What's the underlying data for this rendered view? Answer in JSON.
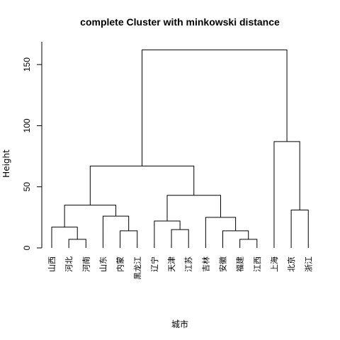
{
  "chart_data": {
    "type": "dendrogram",
    "title": "complete Cluster with minkowski distance",
    "xlabel": "城市",
    "ylabel": "Height",
    "ylim": [
      0,
      168
    ],
    "yticks": [
      0,
      50,
      100,
      150
    ],
    "leaves": [
      "山西",
      "河北",
      "河南",
      "山东",
      "内蒙",
      "黑龙江",
      "辽宁",
      "天津",
      "江苏",
      "吉林",
      "安徽",
      "福建",
      "江西",
      "上海",
      "北京",
      "浙江"
    ],
    "merges": [
      {
        "a": "L1",
        "b": "L2",
        "height": 7
      },
      {
        "a": "L0",
        "b": "N0",
        "height": 17
      },
      {
        "a": "L4",
        "b": "L5",
        "height": 14
      },
      {
        "a": "L3",
        "b": "N2",
        "height": 26
      },
      {
        "a": "N1",
        "b": "N3",
        "height": 35
      },
      {
        "a": "L7",
        "b": "L8",
        "height": 15
      },
      {
        "a": "L6",
        "b": "N5",
        "height": 22
      },
      {
        "a": "L11",
        "b": "L12",
        "height": 7
      },
      {
        "a": "L10",
        "b": "N7",
        "height": 14
      },
      {
        "a": "L9",
        "b": "N8",
        "height": 25
      },
      {
        "a": "N6",
        "b": "N9",
        "height": 43
      },
      {
        "a": "N4",
        "b": "N10",
        "height": 67
      },
      {
        "a": "L14",
        "b": "L15",
        "height": 31
      },
      {
        "a": "L13",
        "b": "N12",
        "height": 87
      },
      {
        "a": "N11",
        "b": "N13",
        "height": 162
      }
    ]
  }
}
